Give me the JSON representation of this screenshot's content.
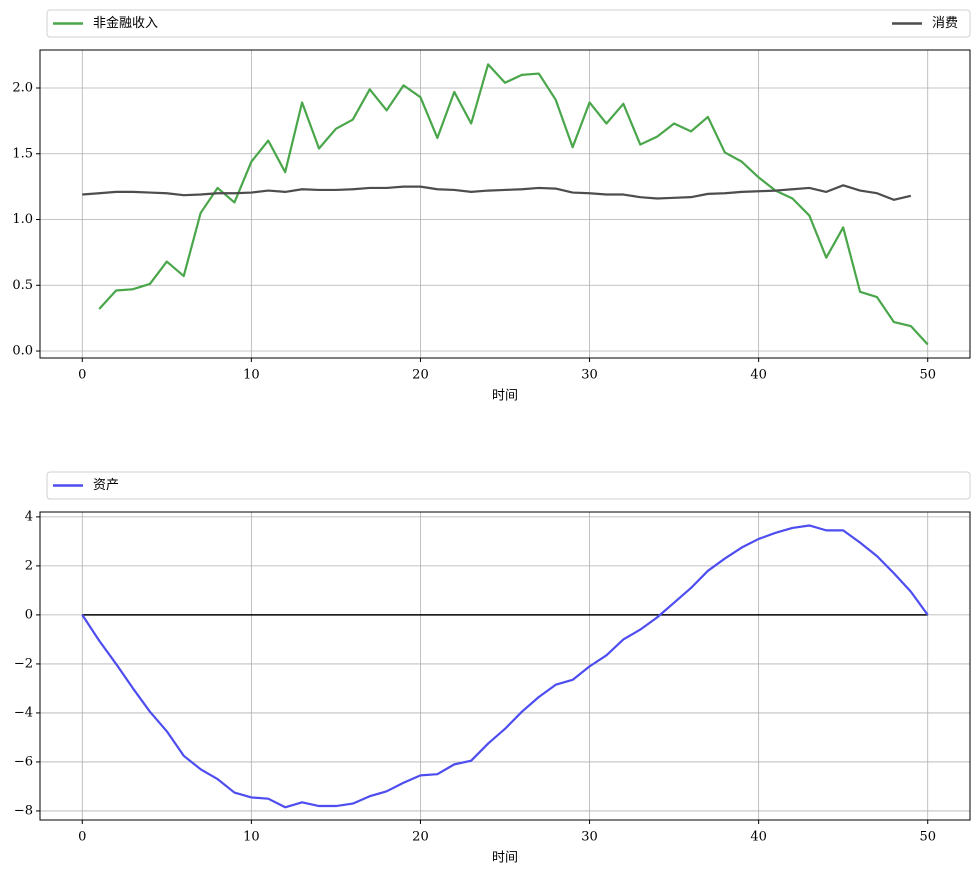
{
  "chart_data": [
    {
      "type": "line",
      "xlabel": "时间",
      "legend": "above",
      "grid": true,
      "xlim": [
        -2.5,
        52.5
      ],
      "ylim": [
        -0.053,
        2.289
      ],
      "xticks": [
        0,
        10,
        20,
        30,
        40,
        50
      ],
      "yticks": [
        {
          "value": 0,
          "label": "0.0"
        },
        {
          "value": 0.5,
          "label": "0.5"
        },
        {
          "value": 1,
          "label": "1.0"
        },
        {
          "value": 1.5,
          "label": "1.5"
        },
        {
          "value": 2,
          "label": "2.0"
        }
      ],
      "series": [
        {
          "name": "非金融收入",
          "color": "#4aa64a",
          "x": [
            1,
            2,
            3,
            4,
            5,
            6,
            7,
            8,
            9,
            10,
            11,
            12,
            13,
            14,
            15,
            16,
            17,
            18,
            19,
            20,
            21,
            22,
            23,
            24,
            25,
            26,
            27,
            28,
            29,
            30,
            31,
            32,
            33,
            34,
            35,
            36,
            37,
            38,
            39,
            40,
            41,
            42,
            43,
            44,
            45,
            46,
            47,
            48,
            49,
            50
          ],
          "values": [
            0.32,
            0.46,
            0.47,
            0.51,
            0.68,
            0.57,
            1.05,
            1.24,
            1.13,
            1.44,
            1.6,
            1.36,
            1.89,
            1.54,
            1.69,
            1.76,
            1.99,
            1.83,
            2.02,
            1.93,
            1.62,
            1.97,
            1.73,
            2.18,
            2.04,
            2.1,
            2.11,
            1.91,
            1.55,
            1.89,
            1.73,
            1.88,
            1.57,
            1.63,
            1.73,
            1.67,
            1.78,
            1.51,
            1.44,
            1.32,
            1.22,
            1.16,
            1.03,
            0.71,
            0.94,
            0.45,
            0.41,
            0.22,
            0.19,
            0.05
          ]
        },
        {
          "name": "消费",
          "color": "#4d4d4d",
          "x": [
            0,
            1,
            2,
            3,
            4,
            5,
            6,
            7,
            8,
            9,
            10,
            11,
            12,
            13,
            14,
            15,
            16,
            17,
            18,
            19,
            20,
            21,
            22,
            23,
            24,
            25,
            26,
            27,
            28,
            29,
            30,
            31,
            32,
            33,
            34,
            35,
            36,
            37,
            38,
            39,
            40,
            41,
            42,
            43,
            44,
            45,
            46,
            47,
            48,
            49
          ],
          "values": [
            1.19,
            1.2,
            1.21,
            1.21,
            1.205,
            1.2,
            1.185,
            1.19,
            1.2,
            1.2,
            1.205,
            1.22,
            1.21,
            1.23,
            1.225,
            1.225,
            1.23,
            1.24,
            1.24,
            1.25,
            1.25,
            1.23,
            1.225,
            1.21,
            1.22,
            1.225,
            1.23,
            1.24,
            1.235,
            1.205,
            1.2,
            1.19,
            1.19,
            1.17,
            1.16,
            1.165,
            1.17,
            1.195,
            1.2,
            1.21,
            1.215,
            1.22,
            1.23,
            1.24,
            1.21,
            1.26,
            1.22,
            1.2,
            1.15,
            1.18
          ]
        }
      ]
    },
    {
      "type": "line",
      "xlabel": "时间",
      "legend": "above",
      "grid": true,
      "xlim": [
        -2.5,
        52.5
      ],
      "ylim": [
        -8.37,
        4.2
      ],
      "xticks": [
        0,
        10,
        20,
        30,
        40,
        50
      ],
      "yticks": [
        {
          "value": -8,
          "label": "−8"
        },
        {
          "value": -6,
          "label": "−6"
        },
        {
          "value": -4,
          "label": "−4"
        },
        {
          "value": -2,
          "label": "−2"
        },
        0,
        2,
        4
      ],
      "reference_lines": [
        {
          "y": 0,
          "x": [
            0,
            50
          ],
          "color": "#000000"
        }
      ],
      "series": [
        {
          "name": "资产",
          "color": "#4d4df0",
          "x": [
            0,
            1,
            2,
            3,
            4,
            5,
            6,
            7,
            8,
            9,
            10,
            11,
            12,
            13,
            14,
            15,
            16,
            17,
            18,
            19,
            20,
            21,
            22,
            23,
            24,
            25,
            26,
            27,
            28,
            29,
            30,
            31,
            32,
            33,
            34,
            35,
            36,
            37,
            38,
            39,
            40,
            41,
            42,
            43,
            44,
            45,
            46,
            47,
            48,
            49,
            50
          ],
          "values": [
            0,
            -1.05,
            -2.0,
            -3.0,
            -3.95,
            -4.75,
            -5.75,
            -6.3,
            -6.7,
            -7.25,
            -7.45,
            -7.5,
            -7.85,
            -7.65,
            -7.8,
            -7.8,
            -7.7,
            -7.4,
            -7.2,
            -6.85,
            -6.55,
            -6.5,
            -6.1,
            -5.95,
            -5.25,
            -4.65,
            -3.95,
            -3.35,
            -2.85,
            -2.65,
            -2.1,
            -1.65,
            -1.0,
            -0.6,
            -0.1,
            0.5,
            1.1,
            1.8,
            2.3,
            2.75,
            3.1,
            3.35,
            3.55,
            3.65,
            3.45,
            3.45,
            2.95,
            2.4,
            1.7,
            0.95,
            0
          ]
        }
      ]
    }
  ]
}
